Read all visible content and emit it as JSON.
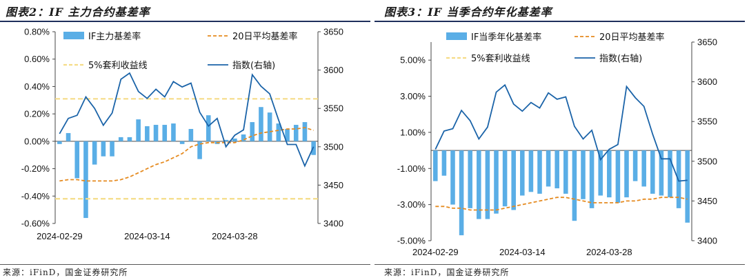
{
  "left": {
    "title": "图表2：IF 主力合约基差率",
    "source": "来源：iFinD，国金证券研究所",
    "chart_data": {
      "type": "bar",
      "legend_placement": "top",
      "grid": false,
      "x_ticks": [
        "2024-02-29",
        "2024-03-14",
        "2024-03-28"
      ],
      "ylim": [
        -0.6,
        0.8
      ],
      "y_ticks": [
        "0.80%",
        "0.60%",
        "0.40%",
        "0.20%",
        "0.00%",
        "-0.20%",
        "-0.40%",
        "-0.60%"
      ],
      "y2lim": [
        3400,
        3650
      ],
      "y2_ticks": [
        "3650",
        "3600",
        "3550",
        "3500",
        "3450",
        "3400"
      ],
      "series": [
        {
          "name": "IF主力基差率",
          "kind": "bar",
          "axis": "left",
          "color": "#5aaee6",
          "values": [
            -0.02,
            0.06,
            -0.27,
            -0.56,
            -0.17,
            -0.11,
            -0.11,
            0.03,
            0.03,
            0.16,
            0.11,
            0.12,
            0.12,
            0.13,
            -0.02,
            0.09,
            -0.13,
            0.19,
            -0.02,
            0.01,
            0.02,
            0.05,
            0.14,
            0.25,
            0.21,
            0.13,
            0.09,
            0.12,
            0.14,
            -0.1
          ]
        },
        {
          "name": "20日平均基差率",
          "kind": "line",
          "axis": "left",
          "color": "#e58a1f",
          "dash": true,
          "values": [
            -0.29,
            -0.28,
            -0.28,
            -0.29,
            -0.29,
            -0.29,
            -0.29,
            -0.28,
            -0.26,
            -0.23,
            -0.2,
            -0.17,
            -0.15,
            -0.12,
            -0.09,
            -0.04,
            -0.02,
            -0.01,
            -0.01,
            -0.01,
            -0.01,
            0.01,
            0.04,
            0.06,
            0.07,
            0.08,
            0.09,
            0.09,
            0.1,
            0.08
          ]
        },
        {
          "name": "5%套利收益线",
          "kind": "hline_pair",
          "axis": "left",
          "color": "#f5dc87",
          "dash": true,
          "values": [
            0.31,
            -0.42
          ]
        },
        {
          "name": "指数(右轴)",
          "kind": "line",
          "axis": "right",
          "color": "#1a63a8",
          "values": [
            3517,
            3537,
            3541,
            3565,
            3550,
            3528,
            3544,
            3588,
            3596,
            3572,
            3563,
            3575,
            3565,
            3585,
            3578,
            3583,
            3545,
            3527,
            3537,
            3500,
            3515,
            3522,
            3594,
            3579,
            3569,
            3535,
            3503,
            3503,
            3475,
            3500
          ]
        }
      ]
    }
  },
  "right": {
    "title": "图表3：IF 当季合约年化基差率",
    "source": "来源：iFinD，国金证券研究所",
    "chart_data": {
      "type": "bar",
      "legend_placement": "top",
      "grid": false,
      "x_ticks": [
        "2024-02-29",
        "2024-03-14",
        "2024-03-28"
      ],
      "ylim": [
        -5.0,
        6.0
      ],
      "y_ticks": [
        "5.00%",
        "3.00%",
        "1.00%",
        "-1.00%",
        "-3.00%",
        "-5.00%"
      ],
      "y2lim": [
        3400,
        3650
      ],
      "y2_ticks": [
        "3650",
        "3600",
        "3550",
        "3500",
        "3450",
        "3400"
      ],
      "series": [
        {
          "name": "IF当季年化基差率",
          "kind": "bar",
          "axis": "left",
          "color": "#5aaee6",
          "values": [
            -1.7,
            -1.4,
            -3.0,
            -4.7,
            -3.2,
            -3.8,
            -3.8,
            -3.5,
            -3.1,
            -3.3,
            -2.5,
            -2.3,
            -2.4,
            -2.0,
            -2.1,
            -2.4,
            -3.9,
            -2.7,
            -3.2,
            -2.5,
            -2.6,
            -2.9,
            -2.6,
            -1.7,
            -2.0,
            -2.4,
            -2.5,
            -2.6,
            -3.2,
            -4.0
          ]
        },
        {
          "name": "20日平均基差率",
          "kind": "line",
          "axis": "left",
          "color": "#e58a1f",
          "dash": true,
          "values": [
            -3.1,
            -3.1,
            -3.2,
            -3.2,
            -3.3,
            -3.3,
            -3.3,
            -3.3,
            -3.2,
            -3.1,
            -3.0,
            -2.9,
            -2.8,
            -2.7,
            -2.6,
            -2.6,
            -2.7,
            -2.8,
            -2.9,
            -2.9,
            -2.9,
            -2.9,
            -2.8,
            -2.8,
            -2.7,
            -2.7,
            -2.6,
            -2.6,
            -2.6,
            -2.7
          ]
        },
        {
          "name": "5%套利收益线",
          "kind": "hline_pair",
          "axis": "left",
          "color": "#f5dc87",
          "dash": true,
          "values": []
        },
        {
          "name": "指数(右轴)",
          "kind": "line",
          "axis": "right",
          "color": "#1a63a8",
          "values": [
            3515,
            3538,
            3541,
            3564,
            3551,
            3528,
            3543,
            3587,
            3596,
            3572,
            3563,
            3574,
            3567,
            3586,
            3578,
            3581,
            3544,
            3528,
            3539,
            3502,
            3515,
            3521,
            3594,
            3580,
            3569,
            3534,
            3503,
            3503,
            3475,
            3476
          ]
        }
      ]
    }
  }
}
